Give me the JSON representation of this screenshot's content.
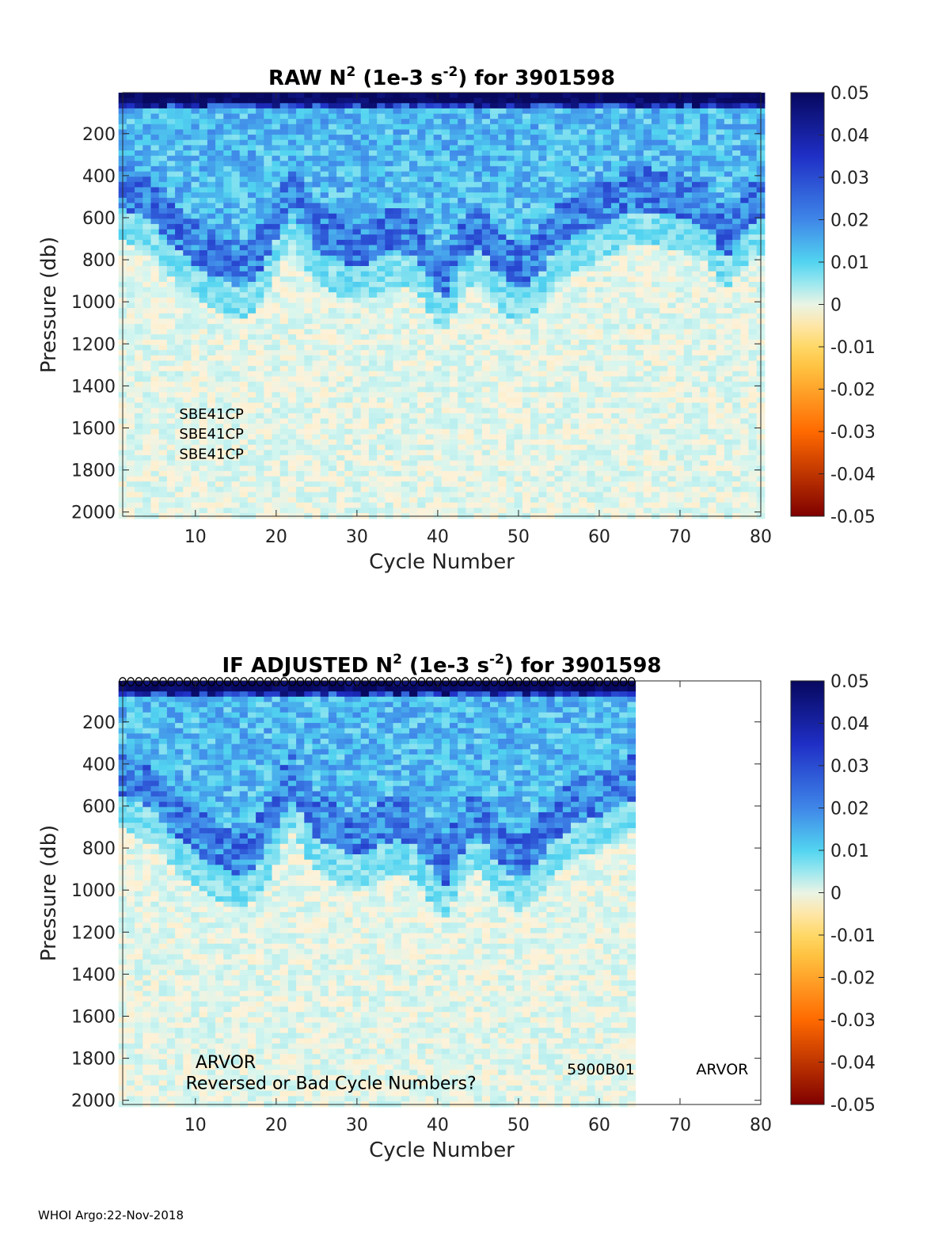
{
  "colors": {
    "neg_max": "#7f0000",
    "neg_mid": "#ff6a00",
    "neg_low": "#ffd24d",
    "zero_warm": "#fdf2da",
    "zero_cool": "#d6f6ef",
    "pos_low": "#52d4f0",
    "pos_mid": "#3f86e8",
    "pos_high": "#1f2fc6",
    "pos_max": "#07085e"
  },
  "footer": "WHOI Argo:22-Nov-2018",
  "chart_data": [
    {
      "type": "heatmap",
      "title": {
        "prefix": "RAW N",
        "sup1": "2",
        "mid": " (1e-3 s",
        "sup2": "-2",
        "suffix": ") for 3901598"
      },
      "xlabel": "Cycle Number",
      "ylabel": "Pressure (db)",
      "xlim": [
        1,
        80
      ],
      "ylim": [
        2020,
        5
      ],
      "xticks": [
        "10",
        "20",
        "30",
        "40",
        "50",
        "60",
        "70",
        "80"
      ],
      "yticks": [
        "200",
        "400",
        "600",
        "800",
        "1000",
        "1200",
        "1400",
        "1600",
        "1800",
        "2000"
      ],
      "colorbar": {
        "range": [
          -0.05,
          0.05
        ],
        "ticks": [
          "0.05",
          "0.04",
          "0.03",
          "0.02",
          "0.01",
          "0",
          "-0.01",
          "-0.02",
          "-0.03",
          "-0.04",
          "-0.05"
        ]
      },
      "data_cycles": [
        1,
        80
      ],
      "thermocline_depth_db": [
        480,
        500,
        520,
        540,
        560,
        600,
        650,
        690,
        720,
        750,
        780,
        800,
        820,
        840,
        850,
        860,
        830,
        780,
        720,
        640,
        550,
        500,
        560,
        620,
        680,
        700,
        720,
        740,
        760,
        770,
        760,
        740,
        720,
        700,
        690,
        700,
        720,
        760,
        820,
        880,
        900,
        830,
        760,
        700,
        680,
        720,
        780,
        820,
        850,
        870,
        860,
        820,
        780,
        720,
        680,
        650,
        620,
        600,
        590,
        580,
        560,
        540,
        520,
        500,
        500,
        500,
        510,
        520,
        520,
        530,
        540,
        560,
        580,
        620,
        680,
        700,
        660,
        600,
        560,
        540
      ],
      "surface_layer_cycles": "all",
      "annotations": [
        {
          "text": "SBE41CP",
          "cycle": 8,
          "pressure": 1530
        },
        {
          "text": "SBE41CP",
          "cycle": 8,
          "pressure": 1625
        },
        {
          "text": "SBE41CP",
          "cycle": 8,
          "pressure": 1720
        }
      ]
    },
    {
      "type": "heatmap",
      "title": {
        "prefix": "IF  ADJUSTED N",
        "sup1": "2",
        "mid": " (1e-3 s",
        "sup2": "-2",
        "suffix": ") for 3901598"
      },
      "xlabel": "Cycle Number",
      "ylabel": "Pressure (db)",
      "xlim": [
        1,
        80
      ],
      "ylim": [
        2020,
        5
      ],
      "xticks": [
        "10",
        "20",
        "30",
        "40",
        "50",
        "60",
        "70",
        "80"
      ],
      "yticks": [
        "200",
        "400",
        "600",
        "800",
        "1000",
        "1200",
        "1400",
        "1600",
        "1800",
        "2000"
      ],
      "colorbar": {
        "range": [
          -0.05,
          0.05
        ],
        "ticks": [
          "0.05",
          "0.04",
          "0.03",
          "0.02",
          "0.01",
          "0",
          "-0.01",
          "-0.02",
          "-0.03",
          "-0.04",
          "-0.05"
        ]
      },
      "data_cycles": [
        1,
        64
      ],
      "marker_cycles": [
        1,
        64
      ],
      "annotations": [
        {
          "text": "ARVOR",
          "cycle": 10,
          "pressure": 1820,
          "size": "large"
        },
        {
          "text": "Reversed or Bad Cycle Numbers?",
          "cycle": 8.8,
          "pressure": 1920,
          "size": "large"
        },
        {
          "text": "5900B01",
          "cycle": 56,
          "pressure": 1850,
          "size": "small"
        },
        {
          "text": "ARVOR",
          "cycle": 72,
          "pressure": 1850,
          "size": "small"
        }
      ]
    }
  ]
}
